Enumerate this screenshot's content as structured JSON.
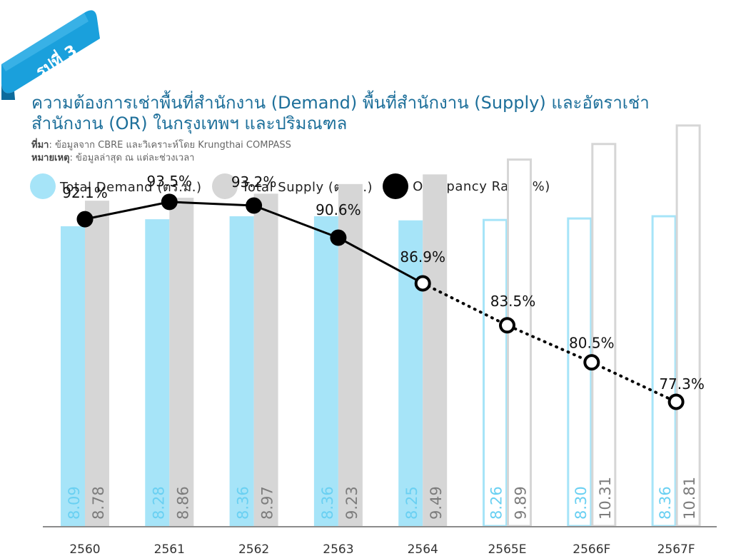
{
  "badge": {
    "label": "รูปที่ 3"
  },
  "header": {
    "title": "ความต้องการเช่าพื้นที่สำนักงาน (Demand) พื้นที่สำนักงาน (Supply) และอัตราเช่าสำนักงาน (OR) ในกรุงเทพฯ และปริมณฑล",
    "source_label": "ที่มา",
    "source_text": ": ข้อมูลจาก CBRE และวิเคราะห์โดย Krungthai COMPASS",
    "note_label": "หมายเหตุ",
    "note_text": ": ข้อมูลล่าสุด ณ แต่ละช่วงเวลา"
  },
  "colors": {
    "demand": "#a6e4f8",
    "supply": "#d6d6d6",
    "occupancy": "#000000",
    "title": "#1d6f9a",
    "badge": "#1aa0dc",
    "axis": "#8c8c8c"
  },
  "chart_data": {
    "type": "bar",
    "categories": [
      "2560",
      "2561",
      "2562",
      "2563",
      "2564",
      "2565E",
      "2566F",
      "2567F"
    ],
    "series": [
      {
        "name": "Total Demand (ตร.ม.)",
        "values": [
          8.09,
          8.28,
          8.36,
          8.36,
          8.25,
          8.26,
          8.3,
          8.36
        ],
        "labels": [
          "8.09",
          "8.28",
          "8.36",
          "8.36",
          "8.25",
          "8.26",
          "8.30",
          "8.36"
        ]
      },
      {
        "name": "Total Supply (ตร.ม.)",
        "values": [
          8.78,
          8.86,
          8.97,
          9.23,
          9.49,
          9.89,
          10.31,
          10.81
        ],
        "labels": [
          "8.78",
          "8.86",
          "8.97",
          "9.23",
          "9.49",
          "9.89",
          "10.31",
          "10.81"
        ]
      },
      {
        "name": "Occupancy Rate (%)",
        "type": "line",
        "values": [
          92.1,
          93.5,
          93.2,
          90.6,
          86.9,
          83.5,
          80.5,
          77.3
        ],
        "labels": [
          "92.1%",
          "93.5%",
          "93.2%",
          "90.6%",
          "86.9%",
          "83.5%",
          "80.5%",
          "77.3%"
        ]
      }
    ],
    "forecast_categories": [
      "2565E",
      "2566F",
      "2567F"
    ],
    "bar_ylim": [
      0,
      11.5
    ],
    "line_ylim": [
      40,
      105
    ],
    "legend_position": "top",
    "grid": false
  }
}
